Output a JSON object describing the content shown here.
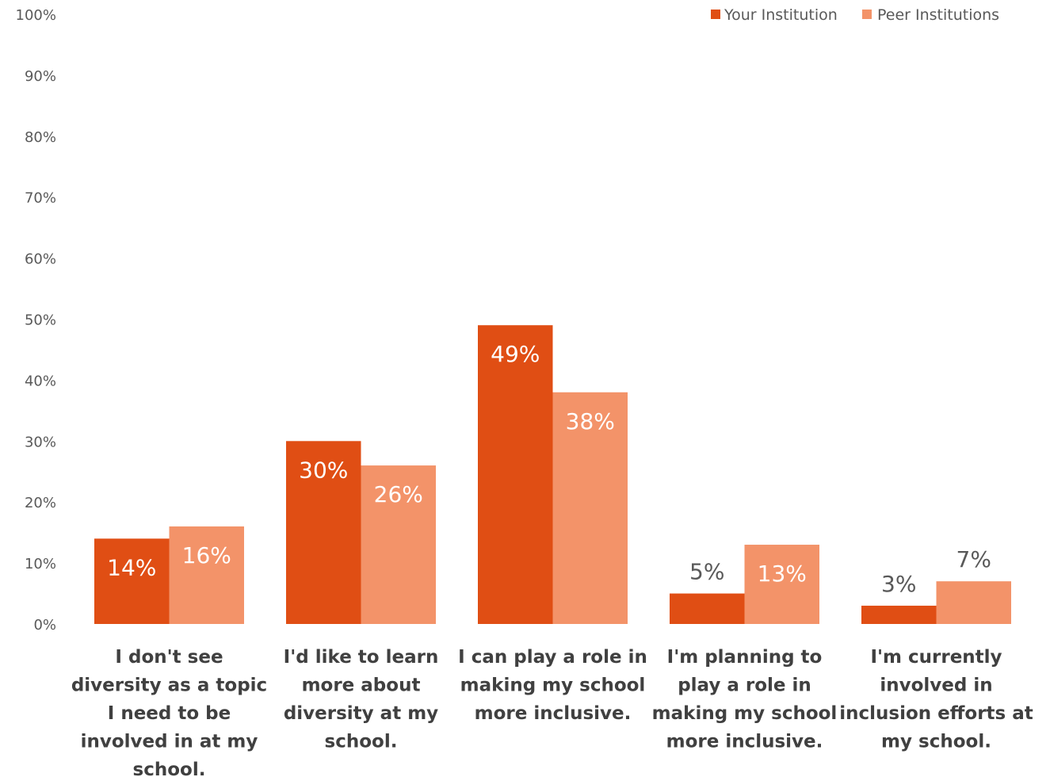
{
  "chart_data": {
    "type": "bar",
    "title": "",
    "xlabel": "",
    "ylabel": "",
    "ylim": [
      0,
      100
    ],
    "y_ticks": [
      "0%",
      "10%",
      "20%",
      "30%",
      "40%",
      "50%",
      "60%",
      "70%",
      "80%",
      "90%",
      "100%"
    ],
    "y_unit": "%",
    "grid": false,
    "legend_position": "top-right",
    "categories": [
      [
        "I don't see",
        "diversity as a topic",
        "I need to be",
        "involved in at my",
        "school."
      ],
      [
        "I'd like to learn",
        "more about",
        "diversity at my",
        "school."
      ],
      [
        "I can play a role in",
        "making my school",
        "more inclusive."
      ],
      [
        "I'm planning to",
        "play a role in",
        "making my school",
        "more inclusive."
      ],
      [
        "I'm currently",
        "involved in",
        "inclusion efforts at",
        "my school."
      ]
    ],
    "series": [
      {
        "name": "Your Institution",
        "color": "#E04E14",
        "values": [
          14,
          30,
          49,
          5,
          3
        ],
        "labels": [
          "14%",
          "30%",
          "49%",
          "5%",
          "3%"
        ]
      },
      {
        "name": "Peer Institutions",
        "color": "#F39369",
        "values": [
          16,
          26,
          38,
          13,
          7
        ],
        "labels": [
          "16%",
          "26%",
          "38%",
          "13%",
          "7%"
        ]
      }
    ]
  }
}
